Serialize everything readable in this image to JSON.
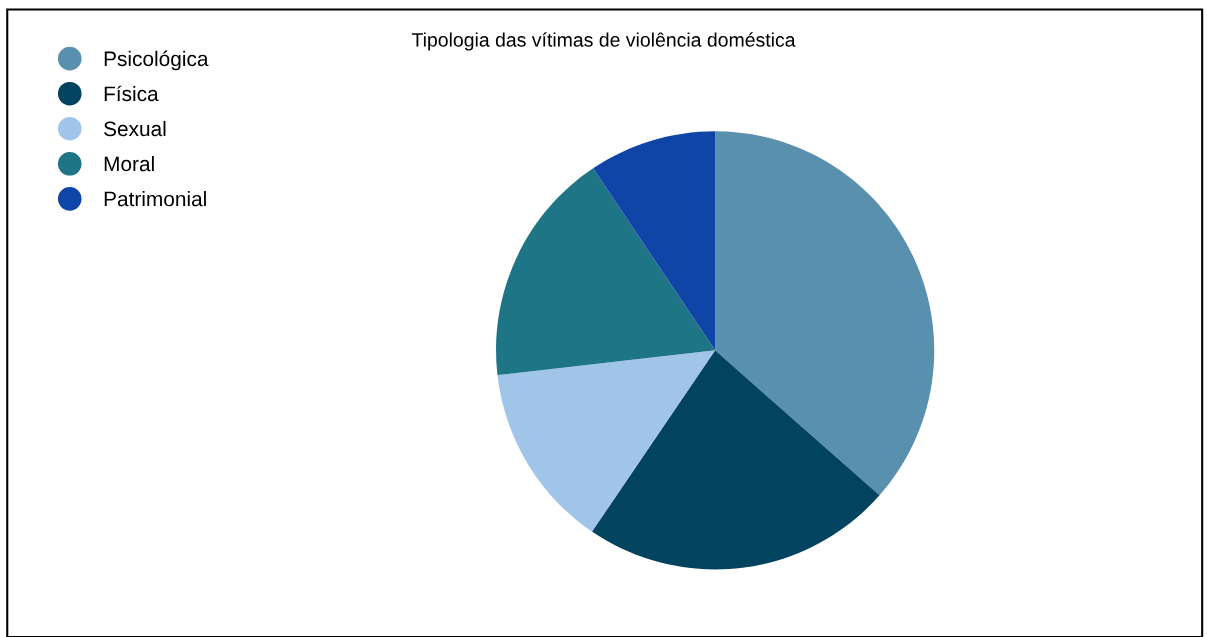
{
  "chart_data": {
    "type": "pie",
    "title": "Tipologia das vítimas de violência doméstica",
    "categories": [
      "Psicológica",
      "Física",
      "Sexual",
      "Moral",
      "Patrimonial"
    ],
    "values": [
      36.5,
      23,
      13.7,
      17.4,
      9.4
    ],
    "colors": [
      "#5990ae",
      "#02435f",
      "#a1c5e8",
      "#1e7585",
      "#1045a8"
    ],
    "legend": "top left"
  }
}
